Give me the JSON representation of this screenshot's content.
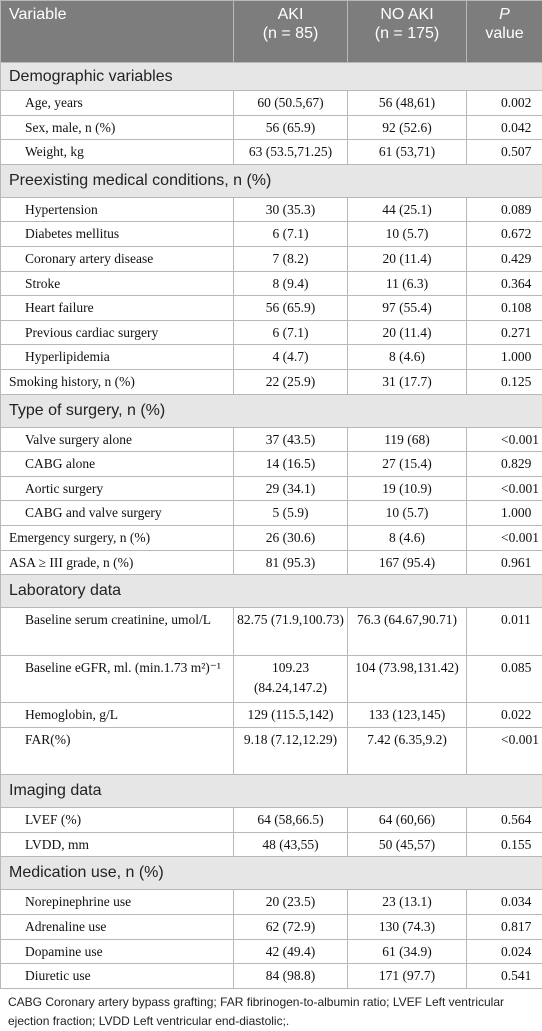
{
  "header": {
    "variable": "Variable",
    "aki": {
      "label": "AKI",
      "n": "(n = 85)"
    },
    "no_aki": {
      "label": "NO AKI",
      "n": "(n = 175)"
    },
    "p": {
      "label": "P",
      "sub": "value"
    }
  },
  "sections": [
    {
      "title": "Demographic variables",
      "rows": [
        {
          "label": "Age, years",
          "indent": true,
          "aki": "60 (50.5,67)",
          "no_aki": "56 (48,61)",
          "p": "0.002"
        },
        {
          "label": "Sex, male, n (%)",
          "indent": true,
          "aki": "56 (65.9)",
          "no_aki": "92 (52.6)",
          "p": "0.042"
        },
        {
          "label": "Weight, kg",
          "indent": true,
          "aki": "63 (53.5,71.25)",
          "no_aki": "61 (53,71)",
          "p": "0.507"
        }
      ]
    },
    {
      "title": "Preexisting medical conditions, n (%)",
      "rows": [
        {
          "label": "Hypertension",
          "indent": true,
          "aki": "30 (35.3)",
          "no_aki": "44 (25.1)",
          "p": "0.089"
        },
        {
          "label": "Diabetes mellitus",
          "indent": true,
          "aki": "6 (7.1)",
          "no_aki": "10 (5.7)",
          "p": "0.672"
        },
        {
          "label": "Coronary artery disease",
          "indent": true,
          "aki": "7 (8.2)",
          "no_aki": "20 (11.4)",
          "p": "0.429"
        },
        {
          "label": "Stroke",
          "indent": true,
          "aki": "8 (9.4)",
          "no_aki": "11 (6.3)",
          "p": "0.364"
        },
        {
          "label": "Heart failure",
          "indent": true,
          "aki": "56 (65.9)",
          "no_aki": "97 (55.4)",
          "p": "0.108"
        },
        {
          "label": "Previous cardiac surgery",
          "indent": true,
          "aki": "6 (7.1)",
          "no_aki": "20 (11.4)",
          "p": "0.271"
        },
        {
          "label": "Hyperlipidemia",
          "indent": true,
          "aki": "4 (4.7)",
          "no_aki": "8 (4.6)",
          "p": "1.000"
        },
        {
          "label": "Smoking history, n (%)",
          "indent": false,
          "aki": "22 (25.9)",
          "no_aki": "31 (17.7)",
          "p": "0.125"
        }
      ]
    },
    {
      "title": "Type of surgery, n (%)",
      "rows": [
        {
          "label": "Valve surgery alone",
          "indent": true,
          "aki": "37 (43.5)",
          "no_aki": "119 (68)",
          "p": "<0.001"
        },
        {
          "label": "CABG alone",
          "indent": true,
          "aki": "14 (16.5)",
          "no_aki": "27 (15.4)",
          "p": "0.829"
        },
        {
          "label": "Aortic surgery",
          "indent": true,
          "aki": "29 (34.1)",
          "no_aki": "19 (10.9)",
          "p": "<0.001"
        },
        {
          "label": "CABG and valve surgery",
          "indent": true,
          "aki": "5 (5.9)",
          "no_aki": "10 (5.7)",
          "p": "1.000"
        },
        {
          "label": "Emergency surgery, n (%)",
          "indent": false,
          "aki": "26 (30.6)",
          "no_aki": "8 (4.6)",
          "p": "<0.001"
        },
        {
          "label": "ASA ≥ III grade, n (%)",
          "indent": false,
          "aki": "81 (95.3)",
          "no_aki": "167 (95.4)",
          "p": "0.961"
        }
      ]
    },
    {
      "title": "Laboratory data",
      "rows": [
        {
          "label": "Baseline serum creatinine, umol/L",
          "indent": true,
          "aki": "82.75 (71.9,100.73)",
          "no_aki": "76.3 (64.67,90.71)",
          "p": "0.011"
        },
        {
          "label": "Baseline eGFR, ml. (min.1.73 m²)⁻¹",
          "indent": true,
          "aki": "109.23 (84.24,147.2)",
          "no_aki": "104 (73.98,131.42)",
          "p": "0.085"
        },
        {
          "label": "Hemoglobin, g/L",
          "indent": true,
          "aki": "129 (115.5,142)",
          "no_aki": "133 (123,145)",
          "p": "0.022"
        },
        {
          "label": "FAR(%)",
          "indent": true,
          "aki": "9.18 (7.12,12.29)",
          "no_aki": "7.42 (6.35,9.2)",
          "p": "<0.001"
        }
      ]
    },
    {
      "title": "Imaging data",
      "rows": [
        {
          "label": "LVEF (%)",
          "indent": true,
          "aki": "64 (58,66.5)",
          "no_aki": "64 (60,66)",
          "p": "0.564"
        },
        {
          "label": "LVDD, mm",
          "indent": true,
          "aki": "48 (43,55)",
          "no_aki": "50 (45,57)",
          "p": "0.155"
        }
      ]
    },
    {
      "title": "Medication use, n (%)",
      "rows": [
        {
          "label": "Norepinephrine use",
          "indent": true,
          "aki": "20 (23.5)",
          "no_aki": "23 (13.1)",
          "p": "0.034"
        },
        {
          "label": "Adrenaline use",
          "indent": true,
          "aki": "62 (72.9)",
          "no_aki": "130 (74.3)",
          "p": "0.817"
        },
        {
          "label": "Dopamine use",
          "indent": true,
          "aki": "42 (49.4)",
          "no_aki": "61 (34.9)",
          "p": "0.024"
        },
        {
          "label": "Diuretic use",
          "indent": true,
          "aki": "84 (98.8)",
          "no_aki": "171 (97.7)",
          "p": "0.541"
        }
      ]
    }
  ],
  "footnote": "CABG Coronary artery bypass grafting; FAR fibrinogen-to-albumin ratio; LVEF Left ventricular ejection fraction; LVDD Left ventricular end-diastolic;."
}
